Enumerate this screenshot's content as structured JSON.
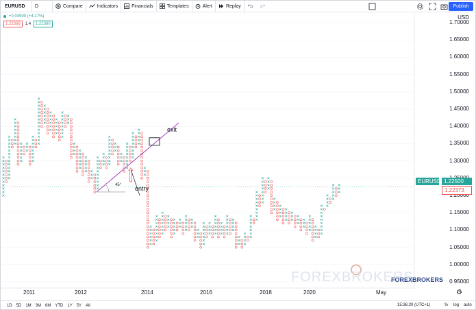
{
  "toolbar": {
    "symbol": "EURUSD",
    "interval": "D",
    "compare": "Compare",
    "indicators": "Indicators",
    "financials": "Financials",
    "templates": "Templates",
    "alert": "Alert",
    "replay": "Replay",
    "publish": "Publish"
  },
  "legend": {
    "change": "+0.04900 (+4.17%)",
    "box_low": "1.22366",
    "box_size": "1.4",
    "box_high": "1.22380"
  },
  "price_axis": {
    "currency": "USD",
    "ticks": [
      "1.70000",
      "1.65000",
      "1.60000",
      "1.55000",
      "1.50000",
      "1.45000",
      "1.40000",
      "1.35000",
      "1.30000",
      "1.25000",
      "1.20000",
      "1.15000",
      "1.10000",
      "1.05000",
      "1.00000",
      "0.95000"
    ],
    "symbol_tag": "EURUSD",
    "last_price": "1.22500",
    "prev_price": "1.22373"
  },
  "time_axis": {
    "ticks": [
      "2011",
      "2012",
      "2014",
      "2016",
      "2018",
      "2020",
      "May"
    ]
  },
  "bottom_bar": {
    "ranges": [
      "1D",
      "5D",
      "1M",
      "3M",
      "6M",
      "YTD",
      "1Y",
      "5Y",
      "All"
    ],
    "time": "15:36:20 (UTC+1)",
    "percent": "%",
    "log": "log",
    "auto": "auto"
  },
  "annotations": {
    "exit": "exit",
    "entry": "entry",
    "angle": "45°"
  },
  "watermark": {
    "large": "FOREXBROKERS",
    "small": "FOREXBROKERS"
  },
  "colors": {
    "x_color": "#26a69a",
    "o_color": "#ef5350",
    "trendline": "#9c27b0",
    "accent": "#2962ff"
  },
  "chart_data": {
    "type": "point_and_figure",
    "symbol": "EURUSD",
    "ylim": [
      0.95,
      1.72
    ],
    "columns": [
      {
        "type": "X",
        "low": 1.2,
        "high": 1.31
      },
      {
        "type": "O",
        "low": 1.24,
        "high": 1.3
      },
      {
        "type": "X",
        "low": 1.25,
        "high": 1.37
      },
      {
        "type": "O",
        "low": 1.34,
        "high": 1.36
      },
      {
        "type": "X",
        "low": 1.35,
        "high": 1.42
      },
      {
        "type": "O",
        "low": 1.29,
        "high": 1.41
      },
      {
        "type": "X",
        "low": 1.3,
        "high": 1.35
      },
      {
        "type": "O",
        "low": 1.32,
        "high": 1.34
      },
      {
        "type": "X",
        "low": 1.33,
        "high": 1.35
      },
      {
        "type": "O",
        "low": 1.29,
        "high": 1.34
      },
      {
        "type": "X",
        "low": 1.3,
        "high": 1.37
      },
      {
        "type": "O",
        "low": 1.34,
        "high": 1.36
      },
      {
        "type": "X",
        "low": 1.35,
        "high": 1.48
      },
      {
        "type": "O",
        "low": 1.4,
        "high": 1.47
      },
      {
        "type": "X",
        "low": 1.41,
        "high": 1.46
      },
      {
        "type": "O",
        "low": 1.38,
        "high": 1.45
      },
      {
        "type": "X",
        "low": 1.39,
        "high": 1.44
      },
      {
        "type": "O",
        "low": 1.37,
        "high": 1.43
      },
      {
        "type": "X",
        "low": 1.38,
        "high": 1.42
      },
      {
        "type": "O",
        "low": 1.36,
        "high": 1.41
      },
      {
        "type": "X",
        "low": 1.37,
        "high": 1.44
      },
      {
        "type": "O",
        "low": 1.4,
        "high": 1.43
      },
      {
        "type": "X",
        "low": 1.41,
        "high": 1.43
      },
      {
        "type": "O",
        "low": 1.31,
        "high": 1.42
      },
      {
        "type": "X",
        "low": 1.32,
        "high": 1.35
      },
      {
        "type": "O",
        "low": 1.27,
        "high": 1.34
      },
      {
        "type": "X",
        "low": 1.28,
        "high": 1.33
      },
      {
        "type": "O",
        "low": 1.26,
        "high": 1.32
      },
      {
        "type": "X",
        "low": 1.27,
        "high": 1.31
      },
      {
        "type": "O",
        "low": 1.24,
        "high": 1.3
      },
      {
        "type": "X",
        "low": 1.25,
        "high": 1.27
      },
      {
        "type": "O",
        "low": 1.21,
        "high": 1.26
      },
      {
        "type": "X",
        "low": 1.22,
        "high": 1.31
      },
      {
        "type": "O",
        "low": 1.28,
        "high": 1.3
      },
      {
        "type": "X",
        "low": 1.29,
        "high": 1.32
      },
      {
        "type": "O",
        "low": 1.28,
        "high": 1.31
      },
      {
        "type": "X",
        "low": 1.29,
        "high": 1.37
      },
      {
        "type": "O",
        "low": 1.32,
        "high": 1.36
      },
      {
        "type": "X",
        "low": 1.33,
        "high": 1.35
      },
      {
        "type": "O",
        "low": 1.29,
        "high": 1.34
      },
      {
        "type": "X",
        "low": 1.3,
        "high": 1.32
      },
      {
        "type": "O",
        "low": 1.27,
        "high": 1.31
      },
      {
        "type": "X",
        "low": 1.28,
        "high": 1.35
      },
      {
        "type": "O",
        "low": 1.3,
        "high": 1.34
      },
      {
        "type": "X",
        "low": 1.31,
        "high": 1.38
      },
      {
        "type": "O",
        "low": 1.34,
        "high": 1.37
      },
      {
        "type": "X",
        "low": 1.35,
        "high": 1.39
      },
      {
        "type": "O",
        "low": 1.25,
        "high": 1.38
      },
      {
        "type": "X",
        "low": 1.26,
        "high": 1.28
      },
      {
        "type": "O",
        "low": 1.05,
        "high": 1.27
      },
      {
        "type": "X",
        "low": 1.06,
        "high": 1.11
      },
      {
        "type": "O",
        "low": 1.06,
        "high": 1.1
      },
      {
        "type": "X",
        "low": 1.07,
        "high": 1.14
      },
      {
        "type": "O",
        "low": 1.08,
        "high": 1.13
      },
      {
        "type": "X",
        "low": 1.09,
        "high": 1.15
      },
      {
        "type": "O",
        "low": 1.1,
        "high": 1.14
      },
      {
        "type": "X",
        "low": 1.11,
        "high": 1.14
      },
      {
        "type": "O",
        "low": 1.08,
        "high": 1.13
      },
      {
        "type": "X",
        "low": 1.09,
        "high": 1.13
      },
      {
        "type": "O",
        "low": 1.1,
        "high": 1.12
      },
      {
        "type": "X",
        "low": 1.11,
        "high": 1.13
      },
      {
        "type": "O",
        "low": 1.09,
        "high": 1.12
      },
      {
        "type": "X",
        "low": 1.1,
        "high": 1.14
      },
      {
        "type": "O",
        "low": 1.1,
        "high": 1.13
      },
      {
        "type": "X",
        "low": 1.11,
        "high": 1.13
      },
      {
        "type": "O",
        "low": 1.07,
        "high": 1.12
      },
      {
        "type": "X",
        "low": 1.08,
        "high": 1.1
      },
      {
        "type": "O",
        "low": 1.05,
        "high": 1.09
      },
      {
        "type": "X",
        "low": 1.06,
        "high": 1.12
      },
      {
        "type": "O",
        "low": 1.08,
        "high": 1.11
      },
      {
        "type": "X",
        "low": 1.09,
        "high": 1.12
      },
      {
        "type": "O",
        "low": 1.08,
        "high": 1.11
      },
      {
        "type": "X",
        "low": 1.09,
        "high": 1.14
      },
      {
        "type": "O",
        "low": 1.08,
        "high": 1.13
      },
      {
        "type": "X",
        "low": 1.09,
        "high": 1.12
      },
      {
        "type": "O",
        "low": 1.08,
        "high": 1.11
      },
      {
        "type": "X",
        "low": 1.09,
        "high": 1.14
      },
      {
        "type": "O",
        "low": 1.09,
        "high": 1.13
      },
      {
        "type": "X",
        "low": 1.1,
        "high": 1.13
      },
      {
        "type": "O",
        "low": 1.05,
        "high": 1.12
      },
      {
        "type": "X",
        "low": 1.06,
        "high": 1.08
      },
      {
        "type": "O",
        "low": 1.05,
        "high": 1.07
      },
      {
        "type": "X",
        "low": 1.06,
        "high": 1.09
      },
      {
        "type": "O",
        "low": 1.07,
        "high": 1.08
      },
      {
        "type": "X",
        "low": 1.08,
        "high": 1.14
      },
      {
        "type": "O",
        "low": 1.12,
        "high": 1.13
      },
      {
        "type": "X",
        "low": 1.13,
        "high": 1.21
      },
      {
        "type": "O",
        "low": 1.17,
        "high": 1.2
      },
      {
        "type": "X",
        "low": 1.18,
        "high": 1.25
      },
      {
        "type": "O",
        "low": 1.21,
        "high": 1.24
      },
      {
        "type": "X",
        "low": 1.22,
        "high": 1.25
      },
      {
        "type": "O",
        "low": 1.15,
        "high": 1.24
      },
      {
        "type": "X",
        "low": 1.16,
        "high": 1.19
      },
      {
        "type": "O",
        "low": 1.13,
        "high": 1.18
      },
      {
        "type": "X",
        "low": 1.14,
        "high": 1.17
      },
      {
        "type": "O",
        "low": 1.12,
        "high": 1.16
      },
      {
        "type": "X",
        "low": 1.13,
        "high": 1.16
      },
      {
        "type": "O",
        "low": 1.12,
        "high": 1.15
      },
      {
        "type": "X",
        "low": 1.13,
        "high": 1.15
      },
      {
        "type": "O",
        "low": 1.11,
        "high": 1.14
      },
      {
        "type": "X",
        "low": 1.12,
        "high": 1.14
      },
      {
        "type": "O",
        "low": 1.1,
        "high": 1.13
      },
      {
        "type": "X",
        "low": 1.11,
        "high": 1.13
      },
      {
        "type": "O",
        "low": 1.09,
        "high": 1.12
      },
      {
        "type": "X",
        "low": 1.1,
        "high": 1.14
      },
      {
        "type": "O",
        "low": 1.07,
        "high": 1.13
      },
      {
        "type": "X",
        "low": 1.08,
        "high": 1.11
      },
      {
        "type": "O",
        "low": 1.08,
        "high": 1.1
      },
      {
        "type": "X",
        "low": 1.09,
        "high": 1.17
      },
      {
        "type": "O",
        "low": 1.16,
        "high": 1.16
      },
      {
        "type": "X",
        "low": 1.17,
        "high": 1.2
      },
      {
        "type": "O",
        "low": 1.18,
        "high": 1.19
      },
      {
        "type": "X",
        "low": 1.19,
        "high": 1.23
      },
      {
        "type": "O",
        "low": 1.2,
        "high": 1.22
      },
      {
        "type": "X",
        "low": 1.21,
        "high": 1.23
      }
    ],
    "trendline": {
      "from": {
        "col": 29,
        "price": 1.21
      },
      "to": {
        "col": 53,
        "price": 1.41
      }
    },
    "exit_box": {
      "col": 47,
      "price": 1.355
    },
    "entry_arrow": {
      "col": 38,
      "price": 1.28
    }
  }
}
